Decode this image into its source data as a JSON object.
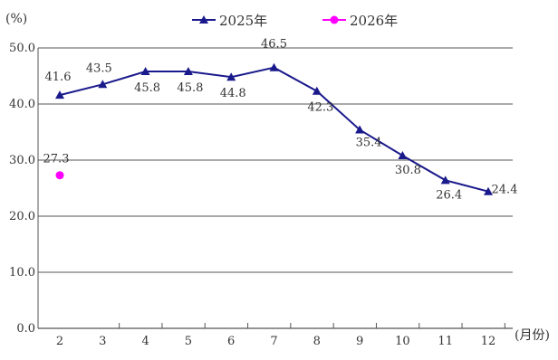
{
  "chart_data": {
    "type": "line",
    "title": "",
    "xlabel": "",
    "ylabel": "",
    "y_unit": "(%)",
    "x_unit": "(月份)",
    "categories": [
      "2",
      "3",
      "4",
      "5",
      "6",
      "7",
      "8",
      "9",
      "10",
      "11",
      "12"
    ],
    "ylim": [
      0,
      50
    ],
    "yticks": [
      "0.0",
      "10.0",
      "20.0",
      "30.0",
      "40.0",
      "50.0"
    ],
    "grid": true,
    "legend_position": "top-center",
    "series": [
      {
        "name": "2025年",
        "marker": "triangle",
        "color": "#1a1a8c",
        "values": [
          41.6,
          43.5,
          45.8,
          45.8,
          44.8,
          46.5,
          42.3,
          35.4,
          30.8,
          26.4,
          24.4
        ],
        "labels": [
          "41.6",
          "43.5",
          "45.8",
          "45.8",
          "44.8",
          "46.5",
          "42.3",
          "35.4",
          "30.8",
          "26.4",
          "24.4"
        ]
      },
      {
        "name": "2026年",
        "marker": "circle",
        "color": "#ff00ff",
        "values": [
          27.3,
          null,
          null,
          null,
          null,
          null,
          null,
          null,
          null,
          null,
          null
        ],
        "labels": [
          "27.3",
          "",
          "",
          "",
          "",
          "",
          "",
          "",
          "",
          "",
          ""
        ]
      }
    ]
  }
}
